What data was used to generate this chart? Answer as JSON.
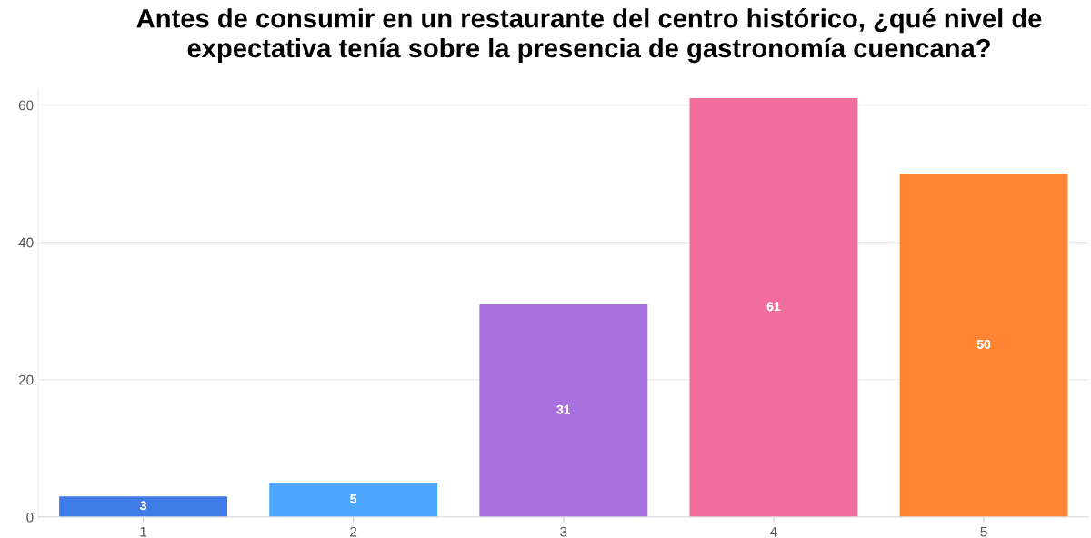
{
  "chart_data": {
    "type": "bar",
    "title": "Antes de consumir en un restaurante del centro histórico, ¿qué nivel de expectativa tenía sobre la presencia de gastronomía cuencana?",
    "categories": [
      "1",
      "2",
      "3",
      "4",
      "5"
    ],
    "values": [
      3,
      5,
      31,
      61,
      50
    ],
    "colors": [
      "#3f7be6",
      "#4da6ff",
      "#a970e0",
      "#f26e9d",
      "#ff8433"
    ],
    "ylim": [
      0,
      62.3
    ],
    "yticks": [
      0,
      20,
      40,
      60
    ],
    "grid": "y",
    "data_labels": true
  }
}
